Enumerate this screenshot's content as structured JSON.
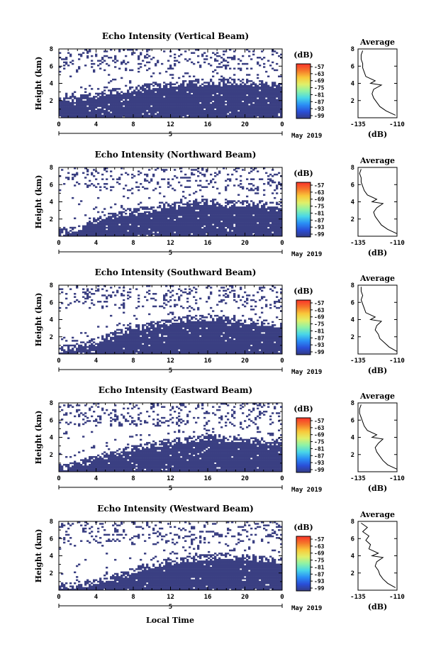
{
  "figure": {
    "x_axis_label": "Local Time",
    "date_label": "May 2019",
    "day_marker": "5",
    "colorbar_unit": "(dB)",
    "colorbar_ticks": [
      "-57",
      "-63",
      "-69",
      "-75",
      "-81",
      "-87",
      "-93",
      "-99"
    ],
    "colorbar_colors": [
      "#f9342a",
      "#f5772a",
      "#f9c83a",
      "#e0f06a",
      "#8ef2a6",
      "#48d6e8",
      "#2a8ef5",
      "#2a4fd8",
      "#333a84"
    ],
    "echo_color": "#3a3f82",
    "avg_title": "Average",
    "avg_unit": "(dB)"
  },
  "chart_data": [
    {
      "type": "heatmap",
      "title": "Echo Intensity (Vertical Beam)",
      "ylabel": "Height (km)",
      "xlabel": "",
      "x_ticks": [
        "0",
        "4",
        "8",
        "12",
        "16",
        "20",
        "0"
      ],
      "y_ticks": [
        "2",
        "4",
        "6",
        "8"
      ],
      "ylim": [
        0,
        8
      ],
      "xlim": [
        0,
        24
      ],
      "solid_layer_top_km": [
        2.1,
        2.2,
        2.3,
        2.5,
        2.6,
        3.0,
        3.1,
        3.2,
        3.4,
        3.6,
        3.8,
        3.9,
        3.9,
        4.0,
        4.1,
        4.2,
        4.3,
        4.3,
        4.2,
        4.2,
        4.2,
        4.1,
        4.0,
        3.9,
        3.9
      ],
      "average_profile": {
        "xlim": [
          -135,
          -110
        ],
        "x_ticks": [
          "-135",
          "-110"
        ],
        "y_ticks": [
          "2",
          "4",
          "6",
          "8"
        ],
        "height_km": [
          0.3,
          0.8,
          1.3,
          1.8,
          2.3,
          2.8,
          3.3,
          3.8,
          4.0,
          4.3,
          4.8,
          5.3,
          5.8,
          6.3,
          6.8,
          7.3,
          7.8
        ],
        "db": [
          -111,
          -117,
          -121,
          -123,
          -125,
          -126,
          -125,
          -120,
          -127,
          -124,
          -130,
          -131,
          -132,
          -132,
          -133,
          -133,
          -132
        ]
      }
    },
    {
      "type": "heatmap",
      "title": "Echo Intensity (Northward Beam)",
      "ylabel": "Height (km)",
      "xlabel": "",
      "x_ticks": [
        "0",
        "4",
        "8",
        "12",
        "16",
        "20",
        "0"
      ],
      "y_ticks": [
        "2",
        "4",
        "6",
        "8"
      ],
      "ylim": [
        0,
        8
      ],
      "xlim": [
        0,
        24
      ],
      "solid_layer_top_km": [
        0.6,
        0.7,
        0.9,
        1.3,
        1.8,
        2.2,
        2.5,
        2.8,
        3.0,
        3.1,
        3.2,
        3.4,
        3.5,
        3.8,
        3.9,
        4.0,
        4.1,
        4.0,
        3.9,
        3.9,
        3.8,
        3.8,
        3.7,
        3.7,
        3.7
      ],
      "average_profile": {
        "xlim": [
          -135,
          -110
        ],
        "x_ticks": [
          "-135",
          "-110"
        ],
        "y_ticks": [
          "2",
          "4",
          "6",
          "8"
        ],
        "height_km": [
          0.3,
          0.8,
          1.3,
          1.8,
          2.3,
          2.8,
          3.3,
          3.8,
          4.0,
          4.3,
          4.8,
          5.3,
          5.8,
          6.3,
          6.8,
          7.3,
          7.8
        ],
        "db": [
          -110,
          -116,
          -120,
          -122,
          -124,
          -125,
          -123,
          -119,
          -126,
          -123,
          -129,
          -131,
          -132,
          -133,
          -133,
          -134,
          -133
        ]
      }
    },
    {
      "type": "heatmap",
      "title": "Echo Intensity (Southward Beam)",
      "ylabel": "Height (km)",
      "xlabel": "",
      "x_ticks": [
        "0",
        "4",
        "8",
        "12",
        "16",
        "20",
        "0"
      ],
      "y_ticks": [
        "2",
        "4",
        "6",
        "8"
      ],
      "ylim": [
        0,
        8
      ],
      "xlim": [
        0,
        24
      ],
      "solid_layer_top_km": [
        0.6,
        0.8,
        1.0,
        1.3,
        1.6,
        2.0,
        2.4,
        2.7,
        3.0,
        3.2,
        3.5,
        3.7,
        3.8,
        4.0,
        4.2,
        4.3,
        4.3,
        4.2,
        4.1,
        4.0,
        3.9,
        3.8,
        3.7,
        3.6,
        3.5
      ],
      "average_profile": {
        "xlim": [
          -135,
          -110
        ],
        "x_ticks": [
          "-135",
          "-110"
        ],
        "y_ticks": [
          "2",
          "4",
          "6",
          "8"
        ],
        "height_km": [
          0.3,
          0.8,
          1.3,
          1.8,
          2.3,
          2.8,
          3.3,
          3.8,
          4.0,
          4.3,
          4.8,
          5.3,
          5.8,
          6.3,
          6.8,
          7.3,
          7.8
        ],
        "db": [
          -110,
          -115,
          -118,
          -121,
          -122,
          -124,
          -123,
          -120,
          -127,
          -124,
          -130,
          -131,
          -132,
          -133,
          -132,
          -133,
          -133
        ]
      }
    },
    {
      "type": "heatmap",
      "title": "Echo Intensity (Eastward Beam)",
      "ylabel": "Height (km)",
      "xlabel": "",
      "x_ticks": [
        "0",
        "4",
        "8",
        "12",
        "16",
        "20",
        "0"
      ],
      "y_ticks": [
        "2",
        "4",
        "6",
        "8"
      ],
      "ylim": [
        0,
        8
      ],
      "xlim": [
        0,
        24
      ],
      "solid_layer_top_km": [
        0.5,
        0.7,
        1.0,
        1.3,
        1.6,
        1.9,
        2.2,
        2.5,
        2.8,
        3.0,
        3.2,
        3.4,
        3.5,
        3.7,
        3.8,
        3.9,
        4.0,
        4.0,
        3.9,
        3.8,
        3.8,
        3.7,
        3.6,
        3.5,
        3.5
      ],
      "average_profile": {
        "xlim": [
          -135,
          -110
        ],
        "x_ticks": [
          "-135",
          "-110"
        ],
        "y_ticks": [
          "2",
          "4",
          "6",
          "8"
        ],
        "height_km": [
          0.3,
          0.8,
          1.3,
          1.8,
          2.3,
          2.8,
          3.3,
          3.8,
          4.0,
          4.3,
          4.8,
          5.3,
          5.8,
          6.3,
          6.8,
          7.3,
          7.8
        ],
        "db": [
          -110,
          -116,
          -119,
          -121,
          -123,
          -124,
          -122,
          -119,
          -126,
          -123,
          -129,
          -131,
          -132,
          -133,
          -134,
          -134,
          -133
        ]
      }
    },
    {
      "type": "heatmap",
      "title": "Echo Intensity (Westward Beam)",
      "ylabel": "Height (km)",
      "xlabel": "Local Time",
      "x_ticks": [
        "0",
        "4",
        "8",
        "12",
        "16",
        "20",
        "0"
      ],
      "y_ticks": [
        "2",
        "4",
        "6",
        "8"
      ],
      "ylim": [
        0,
        8
      ],
      "xlim": [
        0,
        24
      ],
      "solid_layer_top_km": [
        0.5,
        0.6,
        0.7,
        0.8,
        1.0,
        1.2,
        1.5,
        1.9,
        2.3,
        2.7,
        3.0,
        3.2,
        3.3,
        3.5,
        3.6,
        3.8,
        3.9,
        4.0,
        4.0,
        3.9,
        3.8,
        3.8,
        3.7,
        3.6,
        3.5
      ],
      "average_profile": {
        "xlim": [
          -135,
          -110
        ],
        "x_ticks": [
          "-135",
          "-110"
        ],
        "y_ticks": [
          "2",
          "4",
          "6",
          "8"
        ],
        "height_km": [
          0.3,
          0.8,
          1.3,
          1.8,
          2.3,
          2.8,
          3.3,
          3.8,
          4.0,
          4.3,
          4.8,
          5.3,
          5.8,
          6.3,
          6.8,
          7.3,
          7.8
        ],
        "db": [
          -111,
          -116,
          -119,
          -121,
          -122,
          -124,
          -123,
          -119,
          -126,
          -122,
          -128,
          -127,
          -130,
          -128,
          -132,
          -129,
          -133
        ]
      }
    }
  ]
}
